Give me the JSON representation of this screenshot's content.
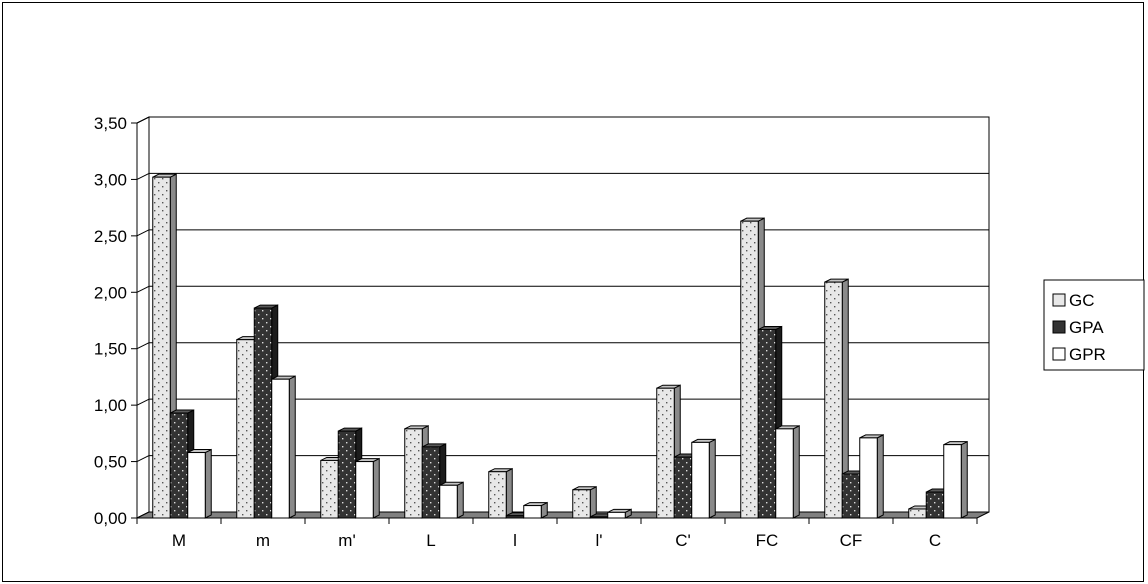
{
  "chart_data": {
    "type": "bar",
    "categories": [
      "M",
      "m",
      "m'",
      "L",
      "l",
      "l'",
      "C'",
      "FC",
      "CF",
      "C"
    ],
    "series": [
      {
        "name": "GC",
        "values": [
          3.02,
          1.58,
          0.51,
          0.79,
          0.41,
          0.25,
          1.15,
          2.63,
          2.09,
          0.08
        ]
      },
      {
        "name": "GPA",
        "values": [
          0.93,
          1.86,
          0.77,
          0.63,
          0.02,
          0.01,
          0.54,
          1.67,
          0.39,
          0.23
        ]
      },
      {
        "name": "GPR",
        "values": [
          0.58,
          1.23,
          0.5,
          0.29,
          0.11,
          0.05,
          0.67,
          0.79,
          0.71,
          0.65
        ]
      }
    ],
    "ylim": [
      0,
      3.5
    ],
    "yticks": [
      "0,00",
      "0,50",
      "1,00",
      "1,50",
      "2,00",
      "2,50",
      "3,00",
      "3,50"
    ],
    "grid": true,
    "legend": "right",
    "style": "3d-clustered-column",
    "colors": {
      "GC": "#e8e8e8",
      "GPA": "#333333",
      "GPR": "#ffffff",
      "GC_dots": "#555555",
      "GPA_dots": "#dddddd",
      "floor": "#808080",
      "bar_side": "#8a8a8a",
      "bar_top": "#b0b0b0"
    }
  }
}
